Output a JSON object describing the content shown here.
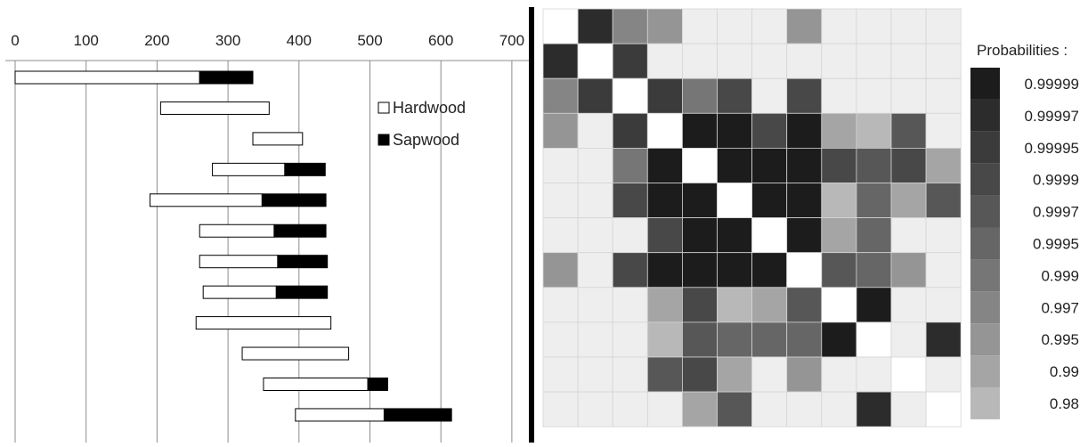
{
  "chart_data": [
    {
      "type": "bar",
      "orientation": "horizontal",
      "stacked": true,
      "xlim": [
        0,
        700
      ],
      "xticks": [
        "0",
        "100",
        "200",
        "300",
        "400",
        "500",
        "600",
        "700"
      ],
      "grid": true,
      "legend_position": "top-right",
      "series": [
        {
          "name": "Hardwood",
          "color": "#ffffff"
        },
        {
          "name": "Sapwood",
          "color": "#000000"
        }
      ],
      "rows": [
        {
          "hardwood": [
            0,
            260
          ],
          "sapwood": [
            260,
            335
          ]
        },
        {
          "hardwood": [
            205,
            358
          ],
          "sapwood": null
        },
        {
          "hardwood": [
            335,
            405
          ],
          "sapwood": null
        },
        {
          "hardwood": [
            278,
            380
          ],
          "sapwood": [
            380,
            437
          ]
        },
        {
          "hardwood": [
            190,
            348
          ],
          "sapwood": [
            348,
            438
          ]
        },
        {
          "hardwood": [
            260,
            365
          ],
          "sapwood": [
            365,
            438
          ]
        },
        {
          "hardwood": [
            260,
            370
          ],
          "sapwood": [
            370,
            440
          ]
        },
        {
          "hardwood": [
            265,
            368
          ],
          "sapwood": [
            368,
            440
          ]
        },
        {
          "hardwood": [
            255,
            445
          ],
          "sapwood": null
        },
        {
          "hardwood": [
            320,
            470
          ],
          "sapwood": null
        },
        {
          "hardwood": [
            350,
            497
          ],
          "sapwood": [
            497,
            525
          ]
        },
        {
          "hardwood": [
            395,
            520
          ],
          "sapwood": [
            520,
            615
          ]
        }
      ]
    },
    {
      "type": "heatmap",
      "legend_title": "Probabilities :",
      "legend_entries": [
        {
          "label": "0.99999",
          "color": "#1c1c1c"
        },
        {
          "label": "0.99997",
          "color": "#2c2c2c"
        },
        {
          "label": "0.99995",
          "color": "#3b3b3b"
        },
        {
          "label": "0.9999",
          "color": "#484848"
        },
        {
          "label": "0.9997",
          "color": "#575757"
        },
        {
          "label": "0.9995",
          "color": "#666666"
        },
        {
          "label": "0.999",
          "color": "#767676"
        },
        {
          "label": "0.997",
          "color": "#858585"
        },
        {
          "label": "0.995",
          "color": "#959595"
        },
        {
          "label": "0.99",
          "color": "#a5a5a5"
        },
        {
          "label": "0.98",
          "color": "#b8b8b8"
        }
      ],
      "diagonal_color": "#ffffff",
      "background_color": "#eeeeee",
      "matrix": [
        [
          -1,
          1,
          7,
          8,
          12,
          12,
          12,
          8,
          12,
          12,
          12,
          12
        ],
        [
          1,
          -1,
          2,
          12,
          12,
          12,
          12,
          12,
          12,
          12,
          12,
          12
        ],
        [
          7,
          2,
          -1,
          2,
          6,
          3,
          12,
          3,
          12,
          12,
          12,
          12
        ],
        [
          8,
          12,
          2,
          -1,
          0,
          0,
          3,
          0,
          9,
          10,
          4,
          12
        ],
        [
          12,
          12,
          6,
          0,
          -1,
          0,
          0,
          0,
          3,
          4,
          3,
          9
        ],
        [
          12,
          12,
          3,
          0,
          0,
          -1,
          0,
          0,
          10,
          5,
          9,
          4
        ],
        [
          12,
          12,
          12,
          3,
          0,
          0,
          -1,
          0,
          9,
          5,
          12,
          12
        ],
        [
          8,
          12,
          3,
          0,
          0,
          0,
          0,
          -1,
          4,
          5,
          8,
          12
        ],
        [
          12,
          12,
          12,
          9,
          3,
          10,
          9,
          4,
          -1,
          0,
          12,
          12
        ],
        [
          12,
          12,
          12,
          10,
          4,
          5,
          5,
          5,
          0,
          -1,
          12,
          1
        ],
        [
          12,
          12,
          12,
          4,
          3,
          9,
          12,
          8,
          12,
          12,
          -1,
          12
        ],
        [
          12,
          12,
          12,
          12,
          9,
          4,
          12,
          12,
          12,
          1,
          12,
          -1
        ]
      ]
    }
  ]
}
